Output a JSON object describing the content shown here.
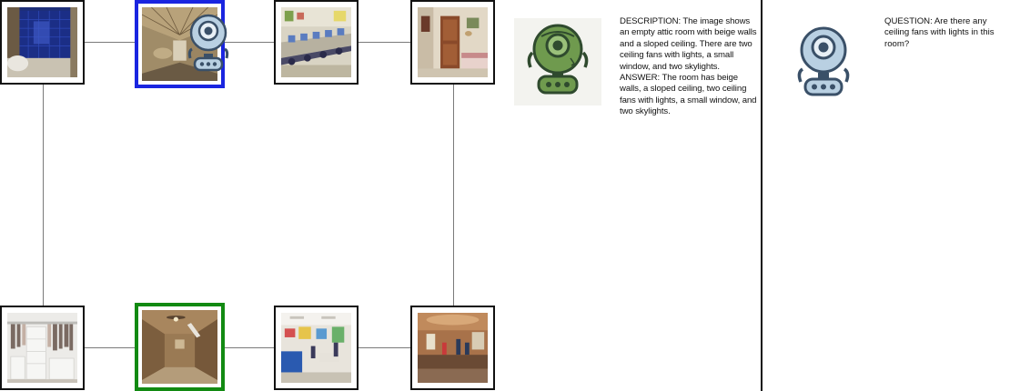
{
  "graph": {
    "nodes": [
      {
        "id": "bathroom",
        "icon": "bathroom-thumbnail",
        "state": "default"
      },
      {
        "id": "attic",
        "icon": "attic-thumbnail",
        "state": "current"
      },
      {
        "id": "computer-lab",
        "icon": "computer-lab-thumbnail",
        "state": "default"
      },
      {
        "id": "bedroom",
        "icon": "bedroom-thumbnail",
        "state": "default"
      },
      {
        "id": "closet",
        "icon": "closet-thumbnail",
        "state": "default"
      },
      {
        "id": "attic-fans",
        "icon": "attic-fans-thumbnail",
        "state": "target"
      },
      {
        "id": "classroom",
        "icon": "classroom-thumbnail",
        "state": "default"
      },
      {
        "id": "lobby",
        "icon": "lobby-thumbnail",
        "state": "default"
      }
    ],
    "colors": {
      "current": "#1a25e0",
      "target": "#128a12",
      "edge": "#7a7a7a"
    }
  },
  "answer_panel": {
    "robot_icon": "green-robot-icon",
    "text": "DESCRIPTION: The image shows an empty attic room with beige walls and a sloped ceiling. There are two ceiling fans with lights, a small window, and two skylights.  ANSWER: The room has beige walls, a sloped ceiling, two ceiling fans with lights, a small window, and two skylights."
  },
  "question_panel": {
    "robot_icon": "blue-robot-icon",
    "text": "QUESTION: Are there any ceiling fans with lights in this room?"
  }
}
